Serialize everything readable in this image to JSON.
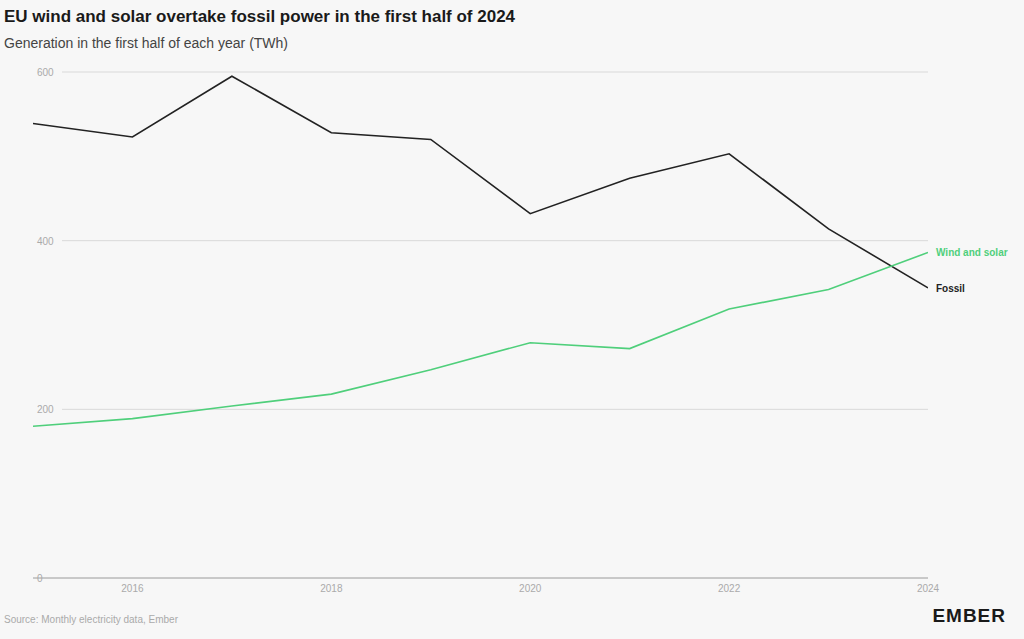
{
  "chart_data": {
    "type": "line",
    "title": "EU wind and solar overtake fossil power in the first half of 2024",
    "subtitle": "Generation in the first half of each year (TWh)",
    "source": "Source: Monthly electricity data, Ember",
    "logo": "EMBER",
    "x": [
      2015,
      2016,
      2017,
      2018,
      2019,
      2020,
      2021,
      2022,
      2023,
      2024
    ],
    "series": [
      {
        "name": "Fossil",
        "color": "#222222",
        "values": [
          539,
          523,
          595,
          528,
          520,
          432,
          474,
          503,
          414,
          344
        ]
      },
      {
        "name": "Wind and solar",
        "color": "#4fcf7b",
        "values": [
          180,
          189,
          204,
          218,
          247,
          279,
          272,
          319,
          342,
          386
        ]
      }
    ],
    "xlim": [
      2015,
      2024
    ],
    "xticks": [
      2016,
      2018,
      2020,
      2022,
      2024
    ],
    "ylim": [
      0,
      600
    ],
    "yticks": [
      0,
      200,
      400,
      600
    ],
    "grid": true
  }
}
